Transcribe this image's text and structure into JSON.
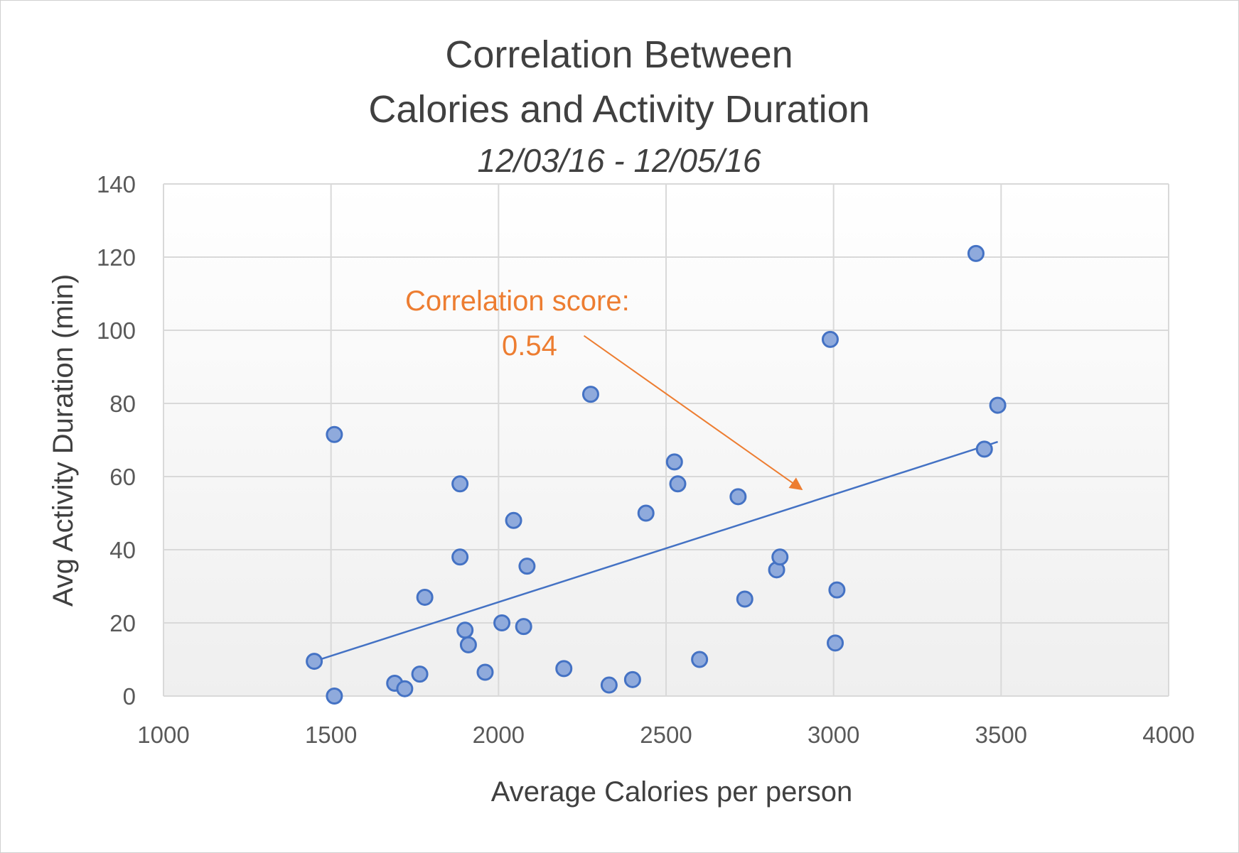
{
  "chart_data": {
    "type": "scatter",
    "title": "Correlation Between",
    "title_line2": "Calories and Activity Duration",
    "subtitle": "12/03/16 - 12/05/16",
    "xlabel": "Average Calories per person",
    "ylabel": "Avg Activity Duration (min)",
    "xlim": [
      1000,
      4000
    ],
    "ylim": [
      0,
      140
    ],
    "x_ticks": [
      1000,
      1500,
      2000,
      2500,
      3000,
      3500,
      4000
    ],
    "y_ticks": [
      0,
      20,
      40,
      60,
      80,
      100,
      120,
      140
    ],
    "grid": true,
    "legend": "none",
    "series": [
      {
        "points": [
          {
            "x": 1450,
            "y": 9.5
          },
          {
            "x": 1510,
            "y": 71.5
          },
          {
            "x": 1510,
            "y": 0
          },
          {
            "x": 1690,
            "y": 3.5
          },
          {
            "x": 1720,
            "y": 2
          },
          {
            "x": 1765,
            "y": 6
          },
          {
            "x": 1780,
            "y": 27
          },
          {
            "x": 1885,
            "y": 58
          },
          {
            "x": 1885,
            "y": 38
          },
          {
            "x": 1900,
            "y": 18
          },
          {
            "x": 1910,
            "y": 14
          },
          {
            "x": 1960,
            "y": 6.5
          },
          {
            "x": 2010,
            "y": 20
          },
          {
            "x": 2045,
            "y": 48
          },
          {
            "x": 2075,
            "y": 19
          },
          {
            "x": 2085,
            "y": 35.5
          },
          {
            "x": 2195,
            "y": 7.5
          },
          {
            "x": 2275,
            "y": 82.5
          },
          {
            "x": 2330,
            "y": 3
          },
          {
            "x": 2400,
            "y": 4.5
          },
          {
            "x": 2440,
            "y": 50
          },
          {
            "x": 2525,
            "y": 64
          },
          {
            "x": 2535,
            "y": 58
          },
          {
            "x": 2600,
            "y": 10
          },
          {
            "x": 2715,
            "y": 54.5
          },
          {
            "x": 2735,
            "y": 26.5
          },
          {
            "x": 2830,
            "y": 34.5
          },
          {
            "x": 2840,
            "y": 38
          },
          {
            "x": 2990,
            "y": 97.5
          },
          {
            "x": 3005,
            "y": 14.5
          },
          {
            "x": 3010,
            "y": 29
          },
          {
            "x": 3425,
            "y": 121
          },
          {
            "x": 3450,
            "y": 67.5
          },
          {
            "x": 3490,
            "y": 79.5
          }
        ]
      }
    ],
    "trendline": {
      "x1": 1450,
      "y1": 9.5,
      "x2": 3490,
      "y2": 69.5
    },
    "annotation": {
      "line1": "Correlation score:",
      "line2": "0.54",
      "arrow_from": {
        "x": 2255,
        "y": 98.5
      },
      "arrow_to": {
        "x": 2905,
        "y": 56.5
      }
    },
    "colors": {
      "marker_fill": "#8faadc",
      "marker_stroke": "#4472c4",
      "trendline": "#4472c4",
      "annotation": "#ed7d31",
      "grid": "#d9d9d9"
    }
  }
}
